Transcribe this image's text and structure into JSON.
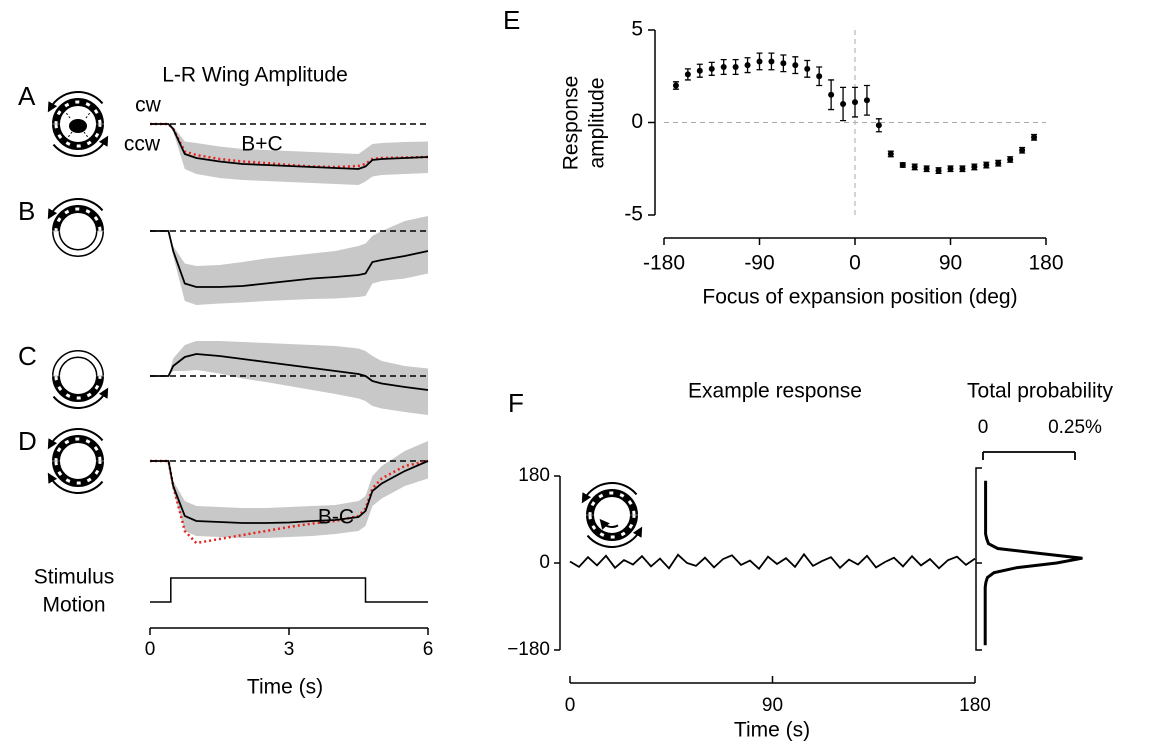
{
  "chart_data": [
    {
      "type": "stack",
      "title": "L-R Wing Amplitude",
      "panel_labels": [
        "A",
        "B",
        "C",
        "D"
      ],
      "direction_labels": [
        "cw",
        "ccw"
      ],
      "x": [
        0,
        0.4,
        0.5,
        0.75,
        1,
        1.5,
        2,
        2.5,
        3,
        3.5,
        4,
        4.5,
        4.65,
        4.8,
        5,
        5.5,
        6
      ],
      "xlim": [
        0,
        6
      ],
      "xticks": [
        0,
        3,
        6
      ],
      "xlabel": "Time (s)",
      "band_color": "#c8c8c8",
      "line_color": "#000000",
      "panels": [
        {
          "ylim": [
            -1.4,
            0.6
          ],
          "mean": [
            0,
            0,
            -0.1,
            -0.6,
            -0.68,
            -0.75,
            -0.8,
            -0.82,
            -0.84,
            -0.86,
            -0.88,
            -0.9,
            -0.85,
            -0.72,
            -0.7,
            -0.68,
            -0.66
          ],
          "lower": [
            0,
            0,
            -0.15,
            -0.9,
            -1.0,
            -1.08,
            -1.12,
            -1.14,
            -1.16,
            -1.18,
            -1.2,
            -1.22,
            -1.15,
            -1.05,
            -1.02,
            -1.0,
            -0.98
          ],
          "upper": [
            0,
            0,
            -0.05,
            -0.35,
            -0.38,
            -0.45,
            -0.5,
            -0.52,
            -0.54,
            -0.56,
            -0.58,
            -0.6,
            -0.5,
            -0.4,
            -0.38,
            -0.36,
            -0.35
          ],
          "overlay": {
            "name": "B+C",
            "color": "#e8231e",
            "values": [
              0,
              0,
              -0.1,
              -0.55,
              -0.62,
              -0.7,
              -0.75,
              -0.78,
              -0.82,
              -0.85,
              -0.86,
              -0.84,
              -0.8,
              -0.7,
              -0.68,
              -0.67,
              -0.66
            ]
          }
        },
        {
          "ylim": [
            -1.4,
            0.6
          ],
          "mean": [
            0,
            0,
            -0.4,
            -1.05,
            -1.12,
            -1.12,
            -1.1,
            -1.05,
            -1.0,
            -0.95,
            -0.92,
            -0.88,
            -0.85,
            -0.62,
            -0.58,
            -0.5,
            -0.4
          ],
          "lower": [
            0,
            0,
            -0.5,
            -1.4,
            -1.48,
            -1.45,
            -1.43,
            -1.4,
            -1.38,
            -1.36,
            -1.35,
            -1.32,
            -1.3,
            -1.05,
            -1.0,
            -0.95,
            -0.85
          ],
          "upper": [
            0,
            0,
            -0.3,
            -0.65,
            -0.7,
            -0.68,
            -0.62,
            -0.55,
            -0.5,
            -0.45,
            -0.4,
            -0.3,
            -0.25,
            -0.1,
            0.0,
            0.2,
            0.3
          ]
        },
        {
          "ylim": [
            -0.8,
            1.0
          ],
          "mean": [
            0,
            0,
            0.2,
            0.38,
            0.44,
            0.4,
            0.34,
            0.28,
            0.22,
            0.16,
            0.1,
            0.04,
            0.0,
            -0.1,
            -0.15,
            -0.22,
            -0.28
          ],
          "lower": [
            0,
            0,
            0.1,
            0.1,
            0.12,
            0.05,
            -0.05,
            -0.12,
            -0.2,
            -0.28,
            -0.36,
            -0.45,
            -0.5,
            -0.6,
            -0.65,
            -0.72,
            -0.78
          ],
          "upper": [
            0,
            0,
            0.35,
            0.62,
            0.7,
            0.7,
            0.68,
            0.66,
            0.64,
            0.62,
            0.6,
            0.55,
            0.5,
            0.4,
            0.3,
            0.2,
            0.15
          ]
        },
        {
          "ylim": [
            -1.8,
            0.6
          ],
          "mean": [
            0,
            0,
            -0.5,
            -1.1,
            -1.2,
            -1.22,
            -1.24,
            -1.24,
            -1.23,
            -1.2,
            -1.18,
            -1.12,
            -1.0,
            -0.6,
            -0.45,
            -0.2,
            0.0
          ],
          "lower": [
            0,
            0,
            -0.6,
            -1.4,
            -1.5,
            -1.52,
            -1.54,
            -1.54,
            -1.52,
            -1.5,
            -1.46,
            -1.4,
            -1.3,
            -0.9,
            -0.75,
            -0.5,
            -0.35
          ],
          "upper": [
            0,
            0,
            -0.4,
            -0.8,
            -0.9,
            -0.92,
            -0.94,
            -0.94,
            -0.92,
            -0.9,
            -0.88,
            -0.8,
            -0.7,
            -0.3,
            -0.1,
            0.2,
            0.4
          ],
          "overlay": {
            "name": "B-C",
            "color": "#e8231e",
            "values": [
              0,
              0,
              -0.5,
              -1.4,
              -1.64,
              -1.56,
              -1.48,
              -1.4,
              -1.32,
              -1.25,
              -1.2,
              -1.1,
              -0.95,
              -0.55,
              -0.35,
              -0.1,
              0.0
            ]
          }
        }
      ],
      "stimulus": {
        "label": [
          "Stimulus",
          "Motion"
        ],
        "x": [
          0,
          0.45,
          0.45,
          4.65,
          4.65,
          6
        ],
        "values": [
          0,
          0,
          1,
          1,
          0,
          0
        ],
        "ylim": [
          0,
          1
        ]
      }
    },
    {
      "type": "errorbar",
      "panel_label": "E",
      "xlabel": "Focus of expansion position (deg)",
      "ylabel": [
        "Response",
        "amplitude"
      ],
      "x": [
        -168.75,
        -157.5,
        -146.25,
        -135,
        -123.75,
        -112.5,
        -101.25,
        -90,
        -78.75,
        -67.5,
        -56.25,
        -45,
        -33.75,
        -22.5,
        -11.25,
        0,
        11.25,
        22.5,
        33.75,
        45,
        56.25,
        67.5,
        78.75,
        90,
        101.25,
        112.5,
        123.75,
        135,
        146.25,
        157.5,
        168.75
      ],
      "values": [
        2.0,
        2.6,
        2.8,
        2.9,
        3.0,
        3.0,
        3.1,
        3.3,
        3.3,
        3.2,
        3.1,
        2.9,
        2.5,
        1.5,
        1.0,
        1.1,
        1.2,
        -0.15,
        -1.7,
        -2.3,
        -2.4,
        -2.5,
        -2.6,
        -2.5,
        -2.5,
        -2.4,
        -2.3,
        -2.2,
        -2.0,
        -1.5,
        -0.8
      ],
      "errors": [
        0.2,
        0.3,
        0.35,
        0.35,
        0.4,
        0.4,
        0.4,
        0.45,
        0.45,
        0.45,
        0.45,
        0.45,
        0.5,
        0.8,
        0.9,
        0.8,
        0.8,
        0.35,
        0.15,
        0.12,
        0.15,
        0.15,
        0.15,
        0.15,
        0.15,
        0.15,
        0.15,
        0.15,
        0.15,
        0.15,
        0.15
      ],
      "xlim": [
        -180,
        180
      ],
      "ylim": [
        -5,
        5
      ],
      "xticks": [
        -180,
        -90,
        0,
        90,
        180
      ],
      "yticks": [
        -5,
        0,
        5
      ],
      "color": "#000000",
      "reference_color": "#aaaaaa"
    },
    {
      "type": "line",
      "panel_label": "F",
      "title": "Example response",
      "x": [
        0,
        4,
        8,
        12,
        16,
        20,
        24,
        28,
        32,
        36,
        40,
        44,
        48,
        52,
        56,
        60,
        64,
        68,
        72,
        76,
        80,
        84,
        88,
        92,
        96,
        100,
        104,
        108,
        112,
        116,
        120,
        124,
        128,
        132,
        136,
        140,
        144,
        148,
        152,
        156,
        160,
        164,
        168,
        172,
        176,
        180
      ],
      "values": [
        3,
        -8,
        12,
        -5,
        15,
        -10,
        6,
        -3,
        14,
        -7,
        9,
        -11,
        17,
        0,
        -6,
        11,
        -9,
        8,
        16,
        -4,
        5,
        -12,
        13,
        -2,
        10,
        -8,
        18,
        -6,
        4,
        12,
        -10,
        7,
        -3,
        15,
        -9,
        2,
        11,
        -7,
        14,
        -5,
        8,
        -11,
        6,
        13,
        -4,
        9
      ],
      "xlim": [
        0,
        180
      ],
      "ylim": [
        -180,
        180
      ],
      "xticks": [
        0,
        90,
        180
      ],
      "yticks": [
        180,
        0,
        {
          "value": -180,
          "label": "−180"
        }
      ],
      "xlabel": "Time (s)",
      "color": "#000000"
    },
    {
      "type": "density",
      "title": "Total probability",
      "y": [
        -170,
        -160,
        -150,
        -140,
        -130,
        -120,
        -110,
        -100,
        -90,
        -80,
        -70,
        -60,
        -50,
        -40,
        -30,
        -20,
        -10,
        0,
        10,
        20,
        30,
        40,
        50,
        60,
        70,
        80,
        90,
        100,
        110,
        120,
        130,
        140,
        150,
        160,
        170
      ],
      "values": [
        0.006,
        0.006,
        0.006,
        0.006,
        0.006,
        0.006,
        0.006,
        0.006,
        0.006,
        0.006,
        0.006,
        0.006,
        0.006,
        0.008,
        0.012,
        0.03,
        0.09,
        0.2,
        0.27,
        0.15,
        0.04,
        0.015,
        0.01,
        0.007,
        0.007,
        0.007,
        0.007,
        0.007,
        0.007,
        0.007,
        0.007,
        0.007,
        0.007,
        0.007,
        0.007
      ],
      "xlim": [
        0,
        0.25
      ],
      "xticks": [
        0,
        {
          "value": 0.25,
          "label": "0.25%"
        }
      ],
      "ylim": [
        -180,
        180
      ],
      "color": "#000000"
    }
  ]
}
